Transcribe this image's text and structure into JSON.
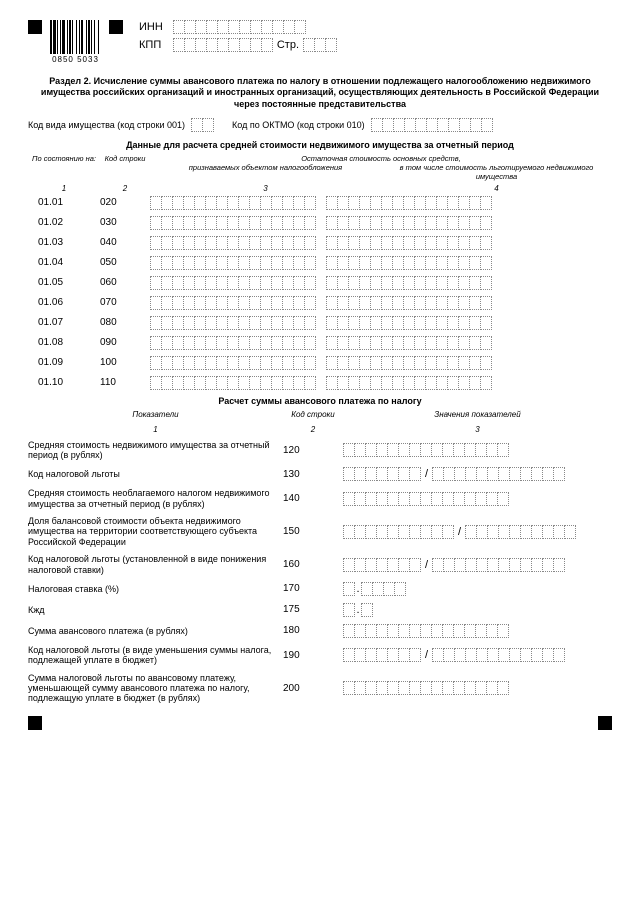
{
  "barcode_text": "0850  5033",
  "header": {
    "inn": "ИНН",
    "kpp": "КПП",
    "str": "Стр."
  },
  "section_title": "Раздел 2. Исчисление суммы авансового платежа по налогу в отношении подлежащего налогообложению недвижимого имущества российских организаций и иностранных организаций, осуществляющих деятельность в Российской Федерации через постоянные представительства",
  "line1": {
    "l1": "Код вида имущества  (код строки 001)",
    "l2": "Код по ОКТМО (код строки 010)"
  },
  "table_title": "Данные для расчета средней стоимости недвижимого имущества за отчетный период",
  "thdr": {
    "c1": "По состоянию на:",
    "c2": "Код строки",
    "c3a": "признаваемых объектом налогообложения",
    "c3b": "Остаточная стоимость основных средств,",
    "c4": "в том числе стоимость льготируемого недвижимого имущества",
    "n1": "1",
    "n2": "2",
    "n3": "3",
    "n4": "4"
  },
  "rows": [
    {
      "d": "01.01",
      "c": "020"
    },
    {
      "d": "01.02",
      "c": "030"
    },
    {
      "d": "01.03",
      "c": "040"
    },
    {
      "d": "01.04",
      "c": "050"
    },
    {
      "d": "01.05",
      "c": "060"
    },
    {
      "d": "01.06",
      "c": "070"
    },
    {
      "d": "01.07",
      "c": "080"
    },
    {
      "d": "01.08",
      "c": "090"
    },
    {
      "d": "01.09",
      "c": "100"
    },
    {
      "d": "01.10",
      "c": "110"
    }
  ],
  "calc_title": "Расчет суммы авансового платежа по налогу",
  "chdr": {
    "l": "Показатели",
    "c": "Код строки",
    "r": "Значения показателей",
    "n1": "1",
    "n2": "2",
    "n3": "3"
  },
  "calc": [
    {
      "label": "Средняя стоимость недвижимого имущества за отчетный период (в рублях)",
      "code": "120",
      "type": "n15"
    },
    {
      "label": "Код налоговой льготы",
      "code": "130",
      "type": "split7_12"
    },
    {
      "label": "Средняя стоимость необлагаемого налогом недвижимого имущества за отчетный период (в рублях)",
      "code": "140",
      "type": "n15"
    },
    {
      "label": "Доля балансовой стоимости объекта недвижимого имущества на территории соответствующего субъекта Российской Федерации",
      "code": "150",
      "type": "frac10_10"
    },
    {
      "label": "Код налоговой льготы (установленной в виде понижения налоговой ставки)",
      "code": "160",
      "type": "split7_12"
    },
    {
      "label": "Налоговая ставка (%)",
      "code": "170",
      "type": "rate"
    },
    {
      "label": "Кжд",
      "code": "175",
      "type": "rate1"
    },
    {
      "label": "Сумма авансового платежа (в рублях)",
      "code": "180",
      "type": "n15"
    },
    {
      "label": "Код налоговой льготы (в виде уменьшения суммы налога, подлежащей уплате в бюджет)",
      "code": "190",
      "type": "split7_12"
    },
    {
      "label": "Сумма налоговой льготы по авансовому платежу, уменьшающей сумму авансового платежа по налогу, подлежащую уплате в бюджет (в рублях)",
      "code": "200",
      "type": "n15"
    }
  ]
}
